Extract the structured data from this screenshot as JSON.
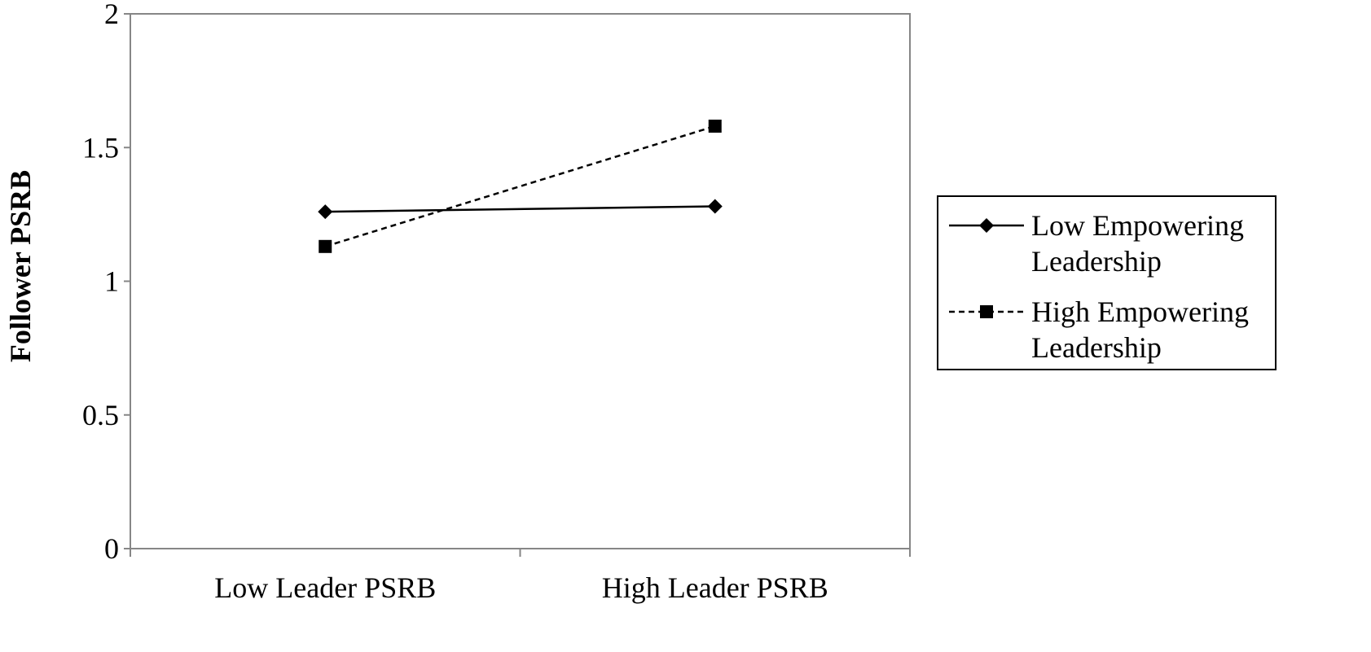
{
  "chart_data": {
    "type": "line",
    "categories": [
      "Low Leader PSRB",
      "High Leader PSRB"
    ],
    "series": [
      {
        "name": "Low Empowering Leadership",
        "name_lines": [
          "Low Empowering",
          "Leadership"
        ],
        "values": [
          1.26,
          1.28
        ],
        "line_style": "solid",
        "marker": "diamond",
        "color": "#000000"
      },
      {
        "name": "High Empowering Leadership",
        "name_lines": [
          "High Empowering",
          "Leadership"
        ],
        "values": [
          1.13,
          1.58
        ],
        "line_style": "dashed",
        "marker": "square",
        "color": "#000000"
      }
    ],
    "title": "",
    "xlabel": "",
    "ylabel": "Follower PSRB",
    "ylim": [
      0,
      2
    ],
    "yticks": [
      "0",
      "0.5",
      "1",
      "1.5",
      "2"
    ],
    "grid": false,
    "legend_position": "right"
  }
}
